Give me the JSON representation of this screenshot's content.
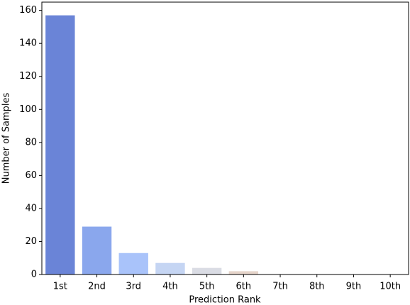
{
  "chart_data": {
    "type": "bar",
    "xlabel": "Prediction Rank",
    "ylabel": "Number of Samples",
    "categories": [
      "1st",
      "2nd",
      "3rd",
      "4th",
      "5th",
      "6th",
      "7th",
      "8th",
      "9th",
      "10th"
    ],
    "values": [
      157,
      29,
      13,
      7,
      4,
      2,
      0,
      0,
      0,
      0
    ],
    "colors": [
      "#6a84d7",
      "#8aa7ed",
      "#a9c3fa",
      "#c5d5f3",
      "#dadce4",
      "#e6d5cb",
      "#f2c6ad",
      "#f2ab8e",
      "#e58a6e",
      "#d1614f"
    ],
    "ylim": [
      0,
      165
    ],
    "yticks": [
      0,
      20,
      40,
      60,
      80,
      100,
      120,
      140,
      160
    ]
  }
}
